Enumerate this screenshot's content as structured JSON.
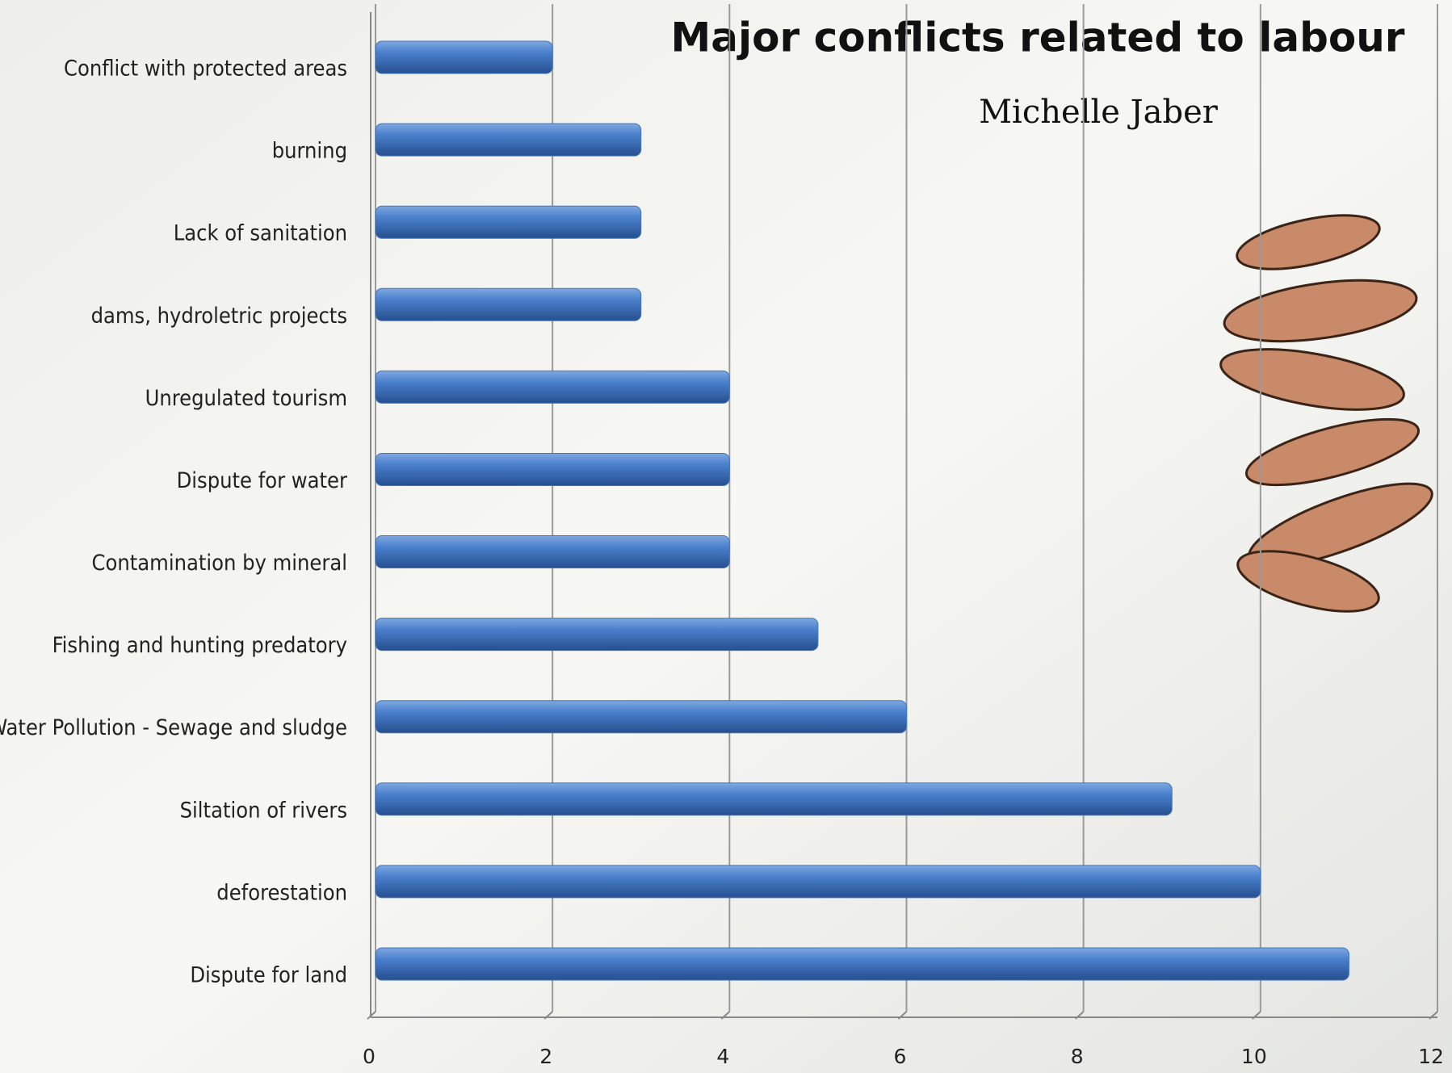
{
  "chart_data": {
    "type": "bar",
    "orientation": "horizontal",
    "title": "Major conflicts related to labour",
    "subtitle": "Michelle Jaber",
    "categories": [
      "Conflict with protected areas",
      "burning",
      "Lack of sanitation",
      "dams, hydroletric projects",
      "Unregulated tourism",
      "Dispute for water",
      "Contamination by mineral",
      "Fishing and hunting predatory",
      "Water Pollution - Sewage and sludge",
      "Siltation of rivers",
      "deforestation",
      "Dispute for land"
    ],
    "values": [
      2,
      3,
      3,
      3,
      4,
      4,
      4,
      5,
      6,
      9,
      10,
      11
    ],
    "color": "#3f75c2",
    "xlim": [
      0,
      12
    ],
    "xticks": [
      0,
      2,
      4,
      6,
      8,
      10,
      12
    ],
    "grid": true
  }
}
